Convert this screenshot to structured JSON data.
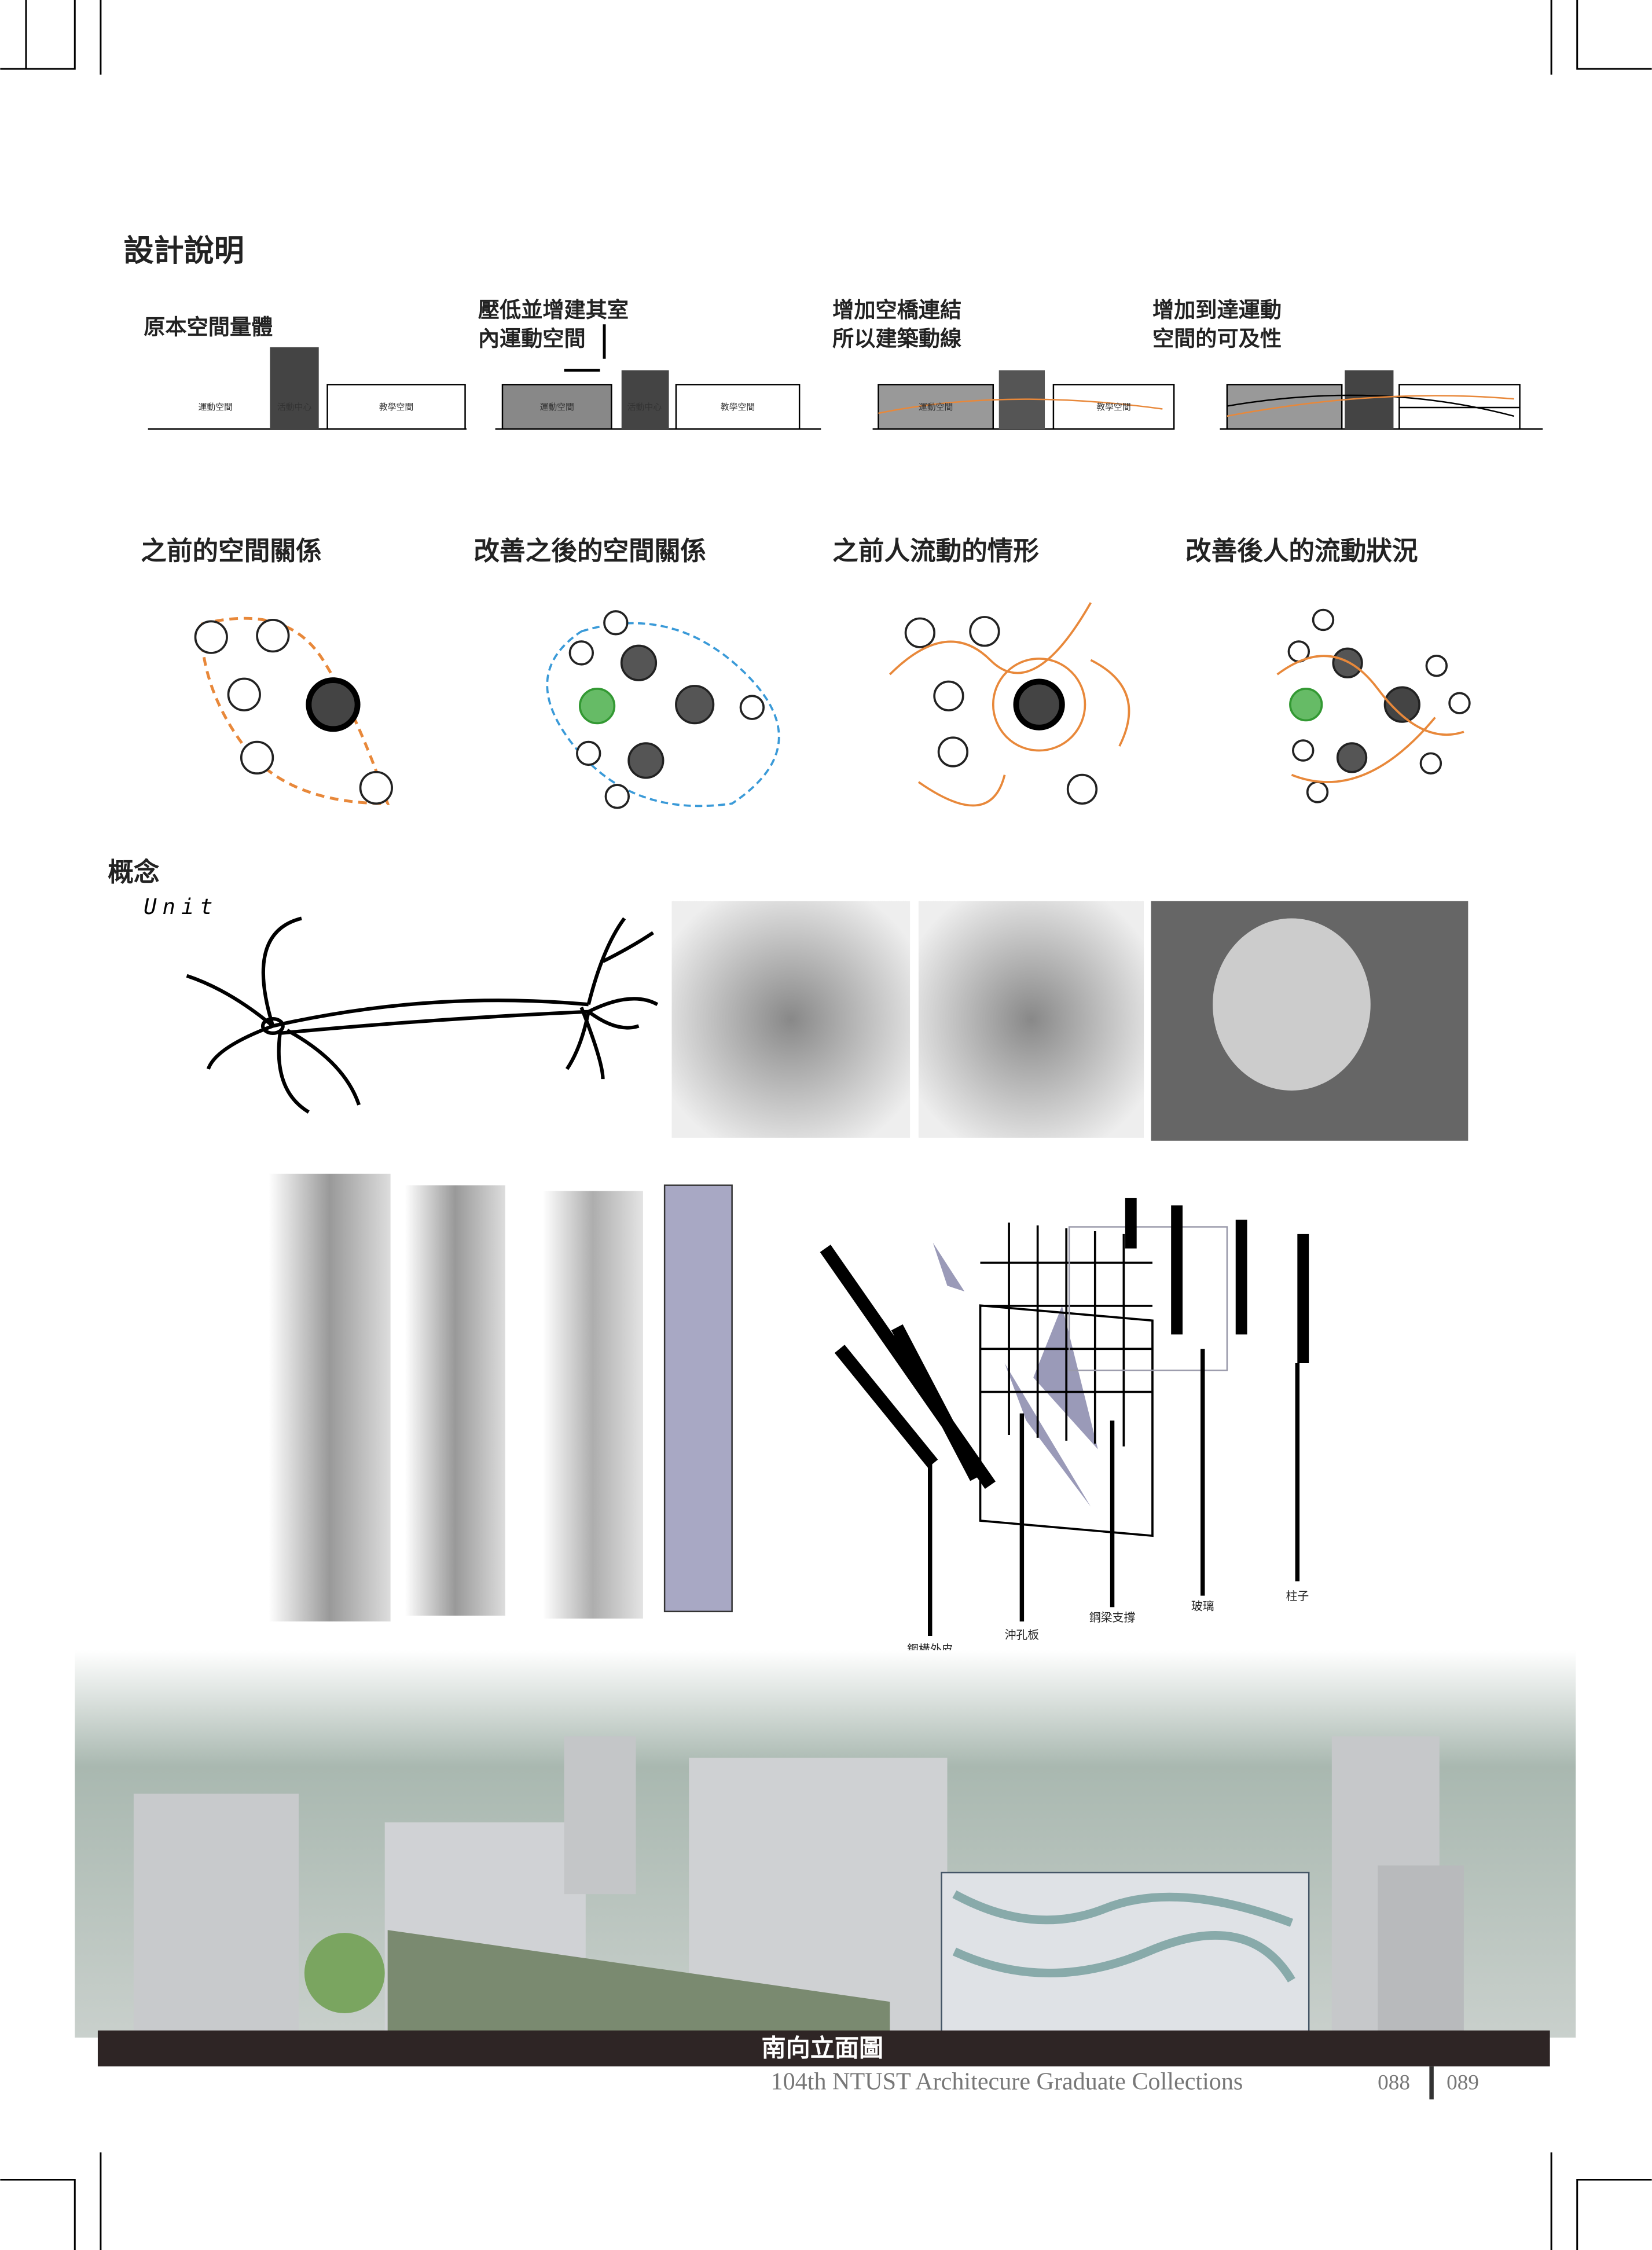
{
  "section_title": "設計說明",
  "massing_steps": [
    {
      "caption": [
        "原本空間量體"
      ],
      "labels": [
        "運動空間",
        "活動中心",
        "教學空間"
      ]
    },
    {
      "caption": [
        "壓低並增建其室",
        "內運動空間"
      ],
      "labels": [
        "運動空間",
        "活動中心",
        "教學空間"
      ]
    },
    {
      "caption": [
        "增加空橋連結",
        "所以建築動線"
      ],
      "labels": [
        "運動空間",
        "教學空間"
      ]
    },
    {
      "caption": [
        "增加到達運動",
        "空間的可及性"
      ]
    }
  ],
  "relation_titles": [
    "之前的空間關係",
    "改善之後的空間關係",
    "之前人流動的情形",
    "改善後人的流動狀況"
  ],
  "concept": {
    "title": "概念",
    "subtitle": "Unit"
  },
  "structure_labels": [
    "鋼構外皮",
    "沖孔板",
    "鋼梁支撐",
    "玻璃",
    "柱子"
  ],
  "elevation": {
    "title": "南向立面圖"
  },
  "footer": {
    "text": "104th NTUST Architecure Graduate Collections",
    "pages": [
      "088",
      "089"
    ]
  }
}
